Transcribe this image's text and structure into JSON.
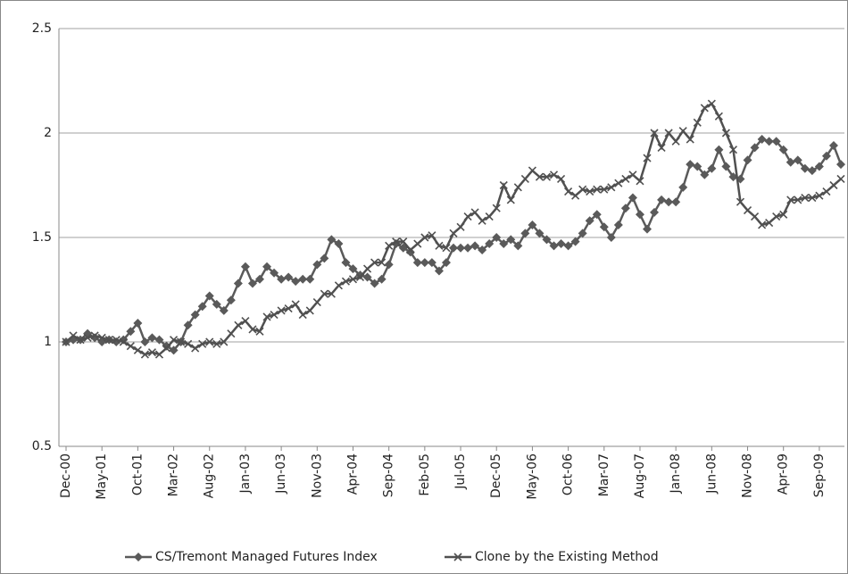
{
  "chart_data": {
    "type": "line",
    "categories": [
      "Dec-00",
      null,
      null,
      null,
      null,
      "May-01",
      null,
      null,
      null,
      null,
      "Oct-01",
      null,
      null,
      null,
      null,
      "Mar-02",
      null,
      null,
      null,
      null,
      "Aug-02",
      null,
      null,
      null,
      null,
      "Jan-03",
      null,
      null,
      null,
      null,
      "Jun-03",
      null,
      null,
      null,
      null,
      "Nov-03",
      null,
      null,
      null,
      null,
      "Apr-04",
      null,
      null,
      null,
      null,
      "Sep-04",
      null,
      null,
      null,
      null,
      "Feb-05",
      null,
      null,
      null,
      null,
      "Jul-05",
      null,
      null,
      null,
      null,
      "Dec-05",
      null,
      null,
      null,
      null,
      "May-06",
      null,
      null,
      null,
      null,
      "Oct-06",
      null,
      null,
      null,
      null,
      "Mar-07",
      null,
      null,
      null,
      null,
      "Aug-07",
      null,
      null,
      null,
      null,
      "Jan-08",
      null,
      null,
      null,
      null,
      "Jun-08",
      null,
      null,
      null,
      null,
      "Nov-08",
      null,
      null,
      null,
      null,
      "Apr-09",
      null,
      null,
      null,
      null,
      "Sep-09",
      null,
      null,
      null
    ],
    "series": [
      {
        "name": "CS/Tremont Managed Futures Index",
        "color": "#5a5a5a",
        "marker": "diamond",
        "values": [
          1.0,
          1.01,
          1.01,
          1.04,
          1.02,
          1.0,
          1.01,
          1.0,
          1.01,
          1.05,
          1.09,
          1.0,
          1.02,
          1.01,
          0.98,
          0.96,
          1.0,
          1.08,
          1.13,
          1.17,
          1.22,
          1.18,
          1.15,
          1.2,
          1.28,
          1.36,
          1.28,
          1.3,
          1.36,
          1.33,
          1.3,
          1.31,
          1.29,
          1.3,
          1.3,
          1.37,
          1.4,
          1.49,
          1.47,
          1.38,
          1.35,
          1.32,
          1.31,
          1.28,
          1.3,
          1.37,
          1.47,
          1.45,
          1.43,
          1.38,
          1.38,
          1.38,
          1.34,
          1.38,
          1.45,
          1.45,
          1.45,
          1.46,
          1.44,
          1.47,
          1.5,
          1.47,
          1.49,
          1.46,
          1.52,
          1.56,
          1.52,
          1.49,
          1.46,
          1.47,
          1.46,
          1.48,
          1.52,
          1.58,
          1.61,
          1.55,
          1.5,
          1.56,
          1.64,
          1.69,
          1.61,
          1.54,
          1.62,
          1.68,
          1.67,
          1.67,
          1.74,
          1.85,
          1.84,
          1.8,
          1.83,
          1.92,
          1.84,
          1.79,
          1.78,
          1.87,
          1.93,
          1.97,
          1.96,
          1.96,
          1.92,
          1.86,
          1.87,
          1.83,
          1.82,
          1.84,
          1.89,
          1.94,
          1.85
        ]
      },
      {
        "name": "Clone by the Existing Method",
        "color": "#505050",
        "marker": "x",
        "values": [
          1.0,
          1.03,
          1.01,
          1.02,
          1.03,
          1.02,
          1.01,
          1.01,
          1.0,
          0.98,
          0.96,
          0.94,
          0.95,
          0.94,
          0.97,
          1.01,
          1.0,
          0.99,
          0.97,
          0.99,
          1.0,
          0.99,
          1.0,
          1.04,
          1.08,
          1.1,
          1.06,
          1.05,
          1.12,
          1.13,
          1.15,
          1.16,
          1.18,
          1.13,
          1.15,
          1.19,
          1.23,
          1.23,
          1.27,
          1.29,
          1.3,
          1.31,
          1.35,
          1.38,
          1.38,
          1.46,
          1.48,
          1.48,
          1.44,
          1.47,
          1.5,
          1.51,
          1.46,
          1.45,
          1.52,
          1.55,
          1.6,
          1.62,
          1.58,
          1.6,
          1.64,
          1.75,
          1.68,
          1.74,
          1.78,
          1.82,
          1.79,
          1.79,
          1.8,
          1.78,
          1.72,
          1.7,
          1.73,
          1.72,
          1.73,
          1.73,
          1.74,
          1.76,
          1.78,
          1.8,
          1.77,
          1.88,
          2.0,
          1.93,
          2.0,
          1.96,
          2.01,
          1.97,
          2.05,
          2.12,
          2.14,
          2.08,
          2.0,
          1.92,
          1.67,
          1.63,
          1.6,
          1.56,
          1.57,
          1.6,
          1.61,
          1.68,
          1.68,
          1.69,
          1.69,
          1.7,
          1.72,
          1.75,
          1.78
        ]
      }
    ],
    "ylim": [
      0.5,
      2.5
    ],
    "yticks": [
      0.5,
      1,
      1.5,
      2,
      2.5
    ],
    "grid": true,
    "legend": "bottom"
  }
}
